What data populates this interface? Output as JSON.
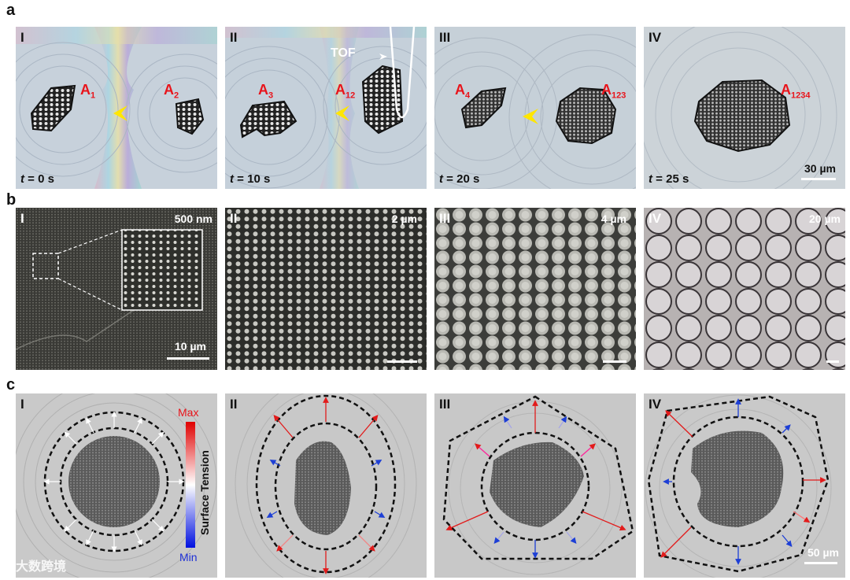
{
  "rows": {
    "a": {
      "letter": "a",
      "panels": [
        {
          "roman": "I",
          "time_label": "= 0 s",
          "t": "t",
          "a_left": {
            "main": "A",
            "sub": "1"
          },
          "a_right": {
            "main": "A",
            "sub": "2"
          }
        },
        {
          "roman": "II",
          "time_label": "= 10 s",
          "t": "t",
          "a_left": {
            "main": "A",
            "sub": "3"
          },
          "a_right": {
            "main": "A",
            "sub": "12"
          },
          "tof": "TOF"
        },
        {
          "roman": "III",
          "time_label": "= 20 s",
          "t": "t",
          "a_left": {
            "main": "A",
            "sub": "4"
          },
          "a_right": {
            "main": "A",
            "sub": "123"
          }
        },
        {
          "roman": "IV",
          "time_label": "= 25 s",
          "t": "t",
          "a_right": {
            "main": "A",
            "sub": "1234"
          },
          "scale": "30 µm"
        }
      ]
    },
    "b": {
      "letter": "b",
      "panels": [
        {
          "roman": "I",
          "scale_top": "500 nm",
          "scale_bottom": "10 µm"
        },
        {
          "roman": "II",
          "scale_top": "2 µm"
        },
        {
          "roman": "III",
          "scale_top": "4 µm"
        },
        {
          "roman": "IV",
          "scale_top": "20 µm"
        }
      ]
    },
    "c": {
      "letter": "c",
      "panels": [
        {
          "roman": "I"
        },
        {
          "roman": "II"
        },
        {
          "roman": "III"
        },
        {
          "roman": "IV",
          "scale": "50 µm"
        }
      ],
      "legend": {
        "max": "Max",
        "min": "Min",
        "title": "Surface Tension"
      }
    }
  },
  "watermark": "大数跨境",
  "colors": {
    "label_red": "#e8141b",
    "arrow_yellow": "#ffe600",
    "arrow_red": "#e21b1b",
    "arrow_blue": "#1d3fd6"
  }
}
